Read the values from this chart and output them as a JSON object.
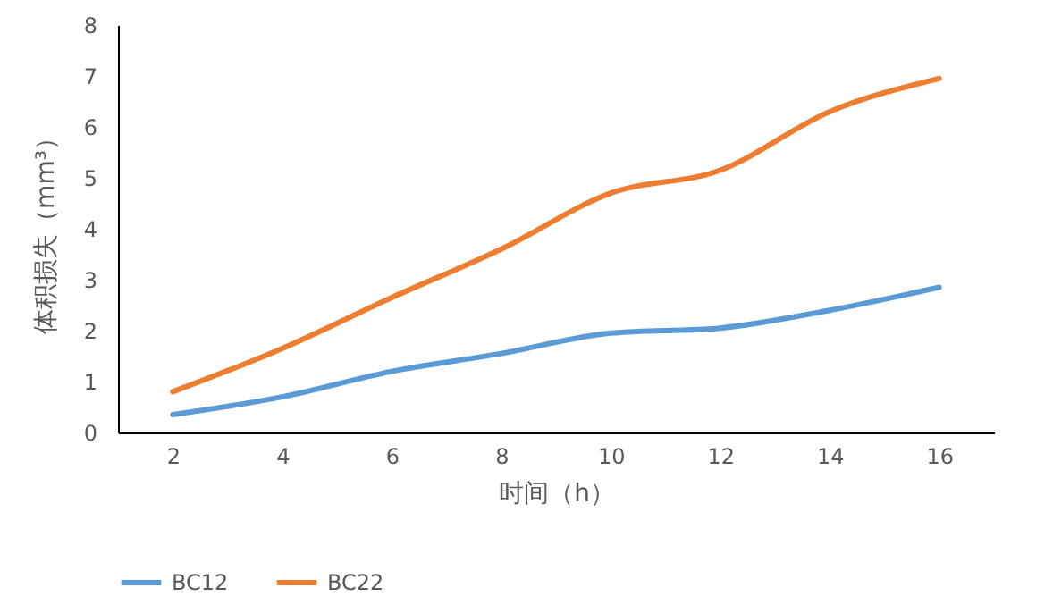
{
  "chart_data": {
    "type": "line",
    "xlabel": "时间（h）",
    "ylabel": "体积损失（mm³）",
    "categories": [
      "2",
      "4",
      "6",
      "8",
      "10",
      "12",
      "14",
      "16"
    ],
    "series": [
      {
        "name": "BC12",
        "color": "#5b9bd5",
        "values": [
          0.35,
          0.7,
          1.2,
          1.55,
          1.95,
          2.05,
          2.4,
          2.85
        ]
      },
      {
        "name": "BC22",
        "color": "#ed7d31",
        "values": [
          0.8,
          1.65,
          2.65,
          3.6,
          4.7,
          5.15,
          6.3,
          6.95
        ]
      }
    ],
    "ylim": [
      0,
      8
    ],
    "yticks": [
      0,
      1,
      2,
      3,
      4,
      5,
      6,
      7,
      8
    ],
    "grid": false,
    "legend": "bottom",
    "marker": "none",
    "line_style": "solid"
  }
}
